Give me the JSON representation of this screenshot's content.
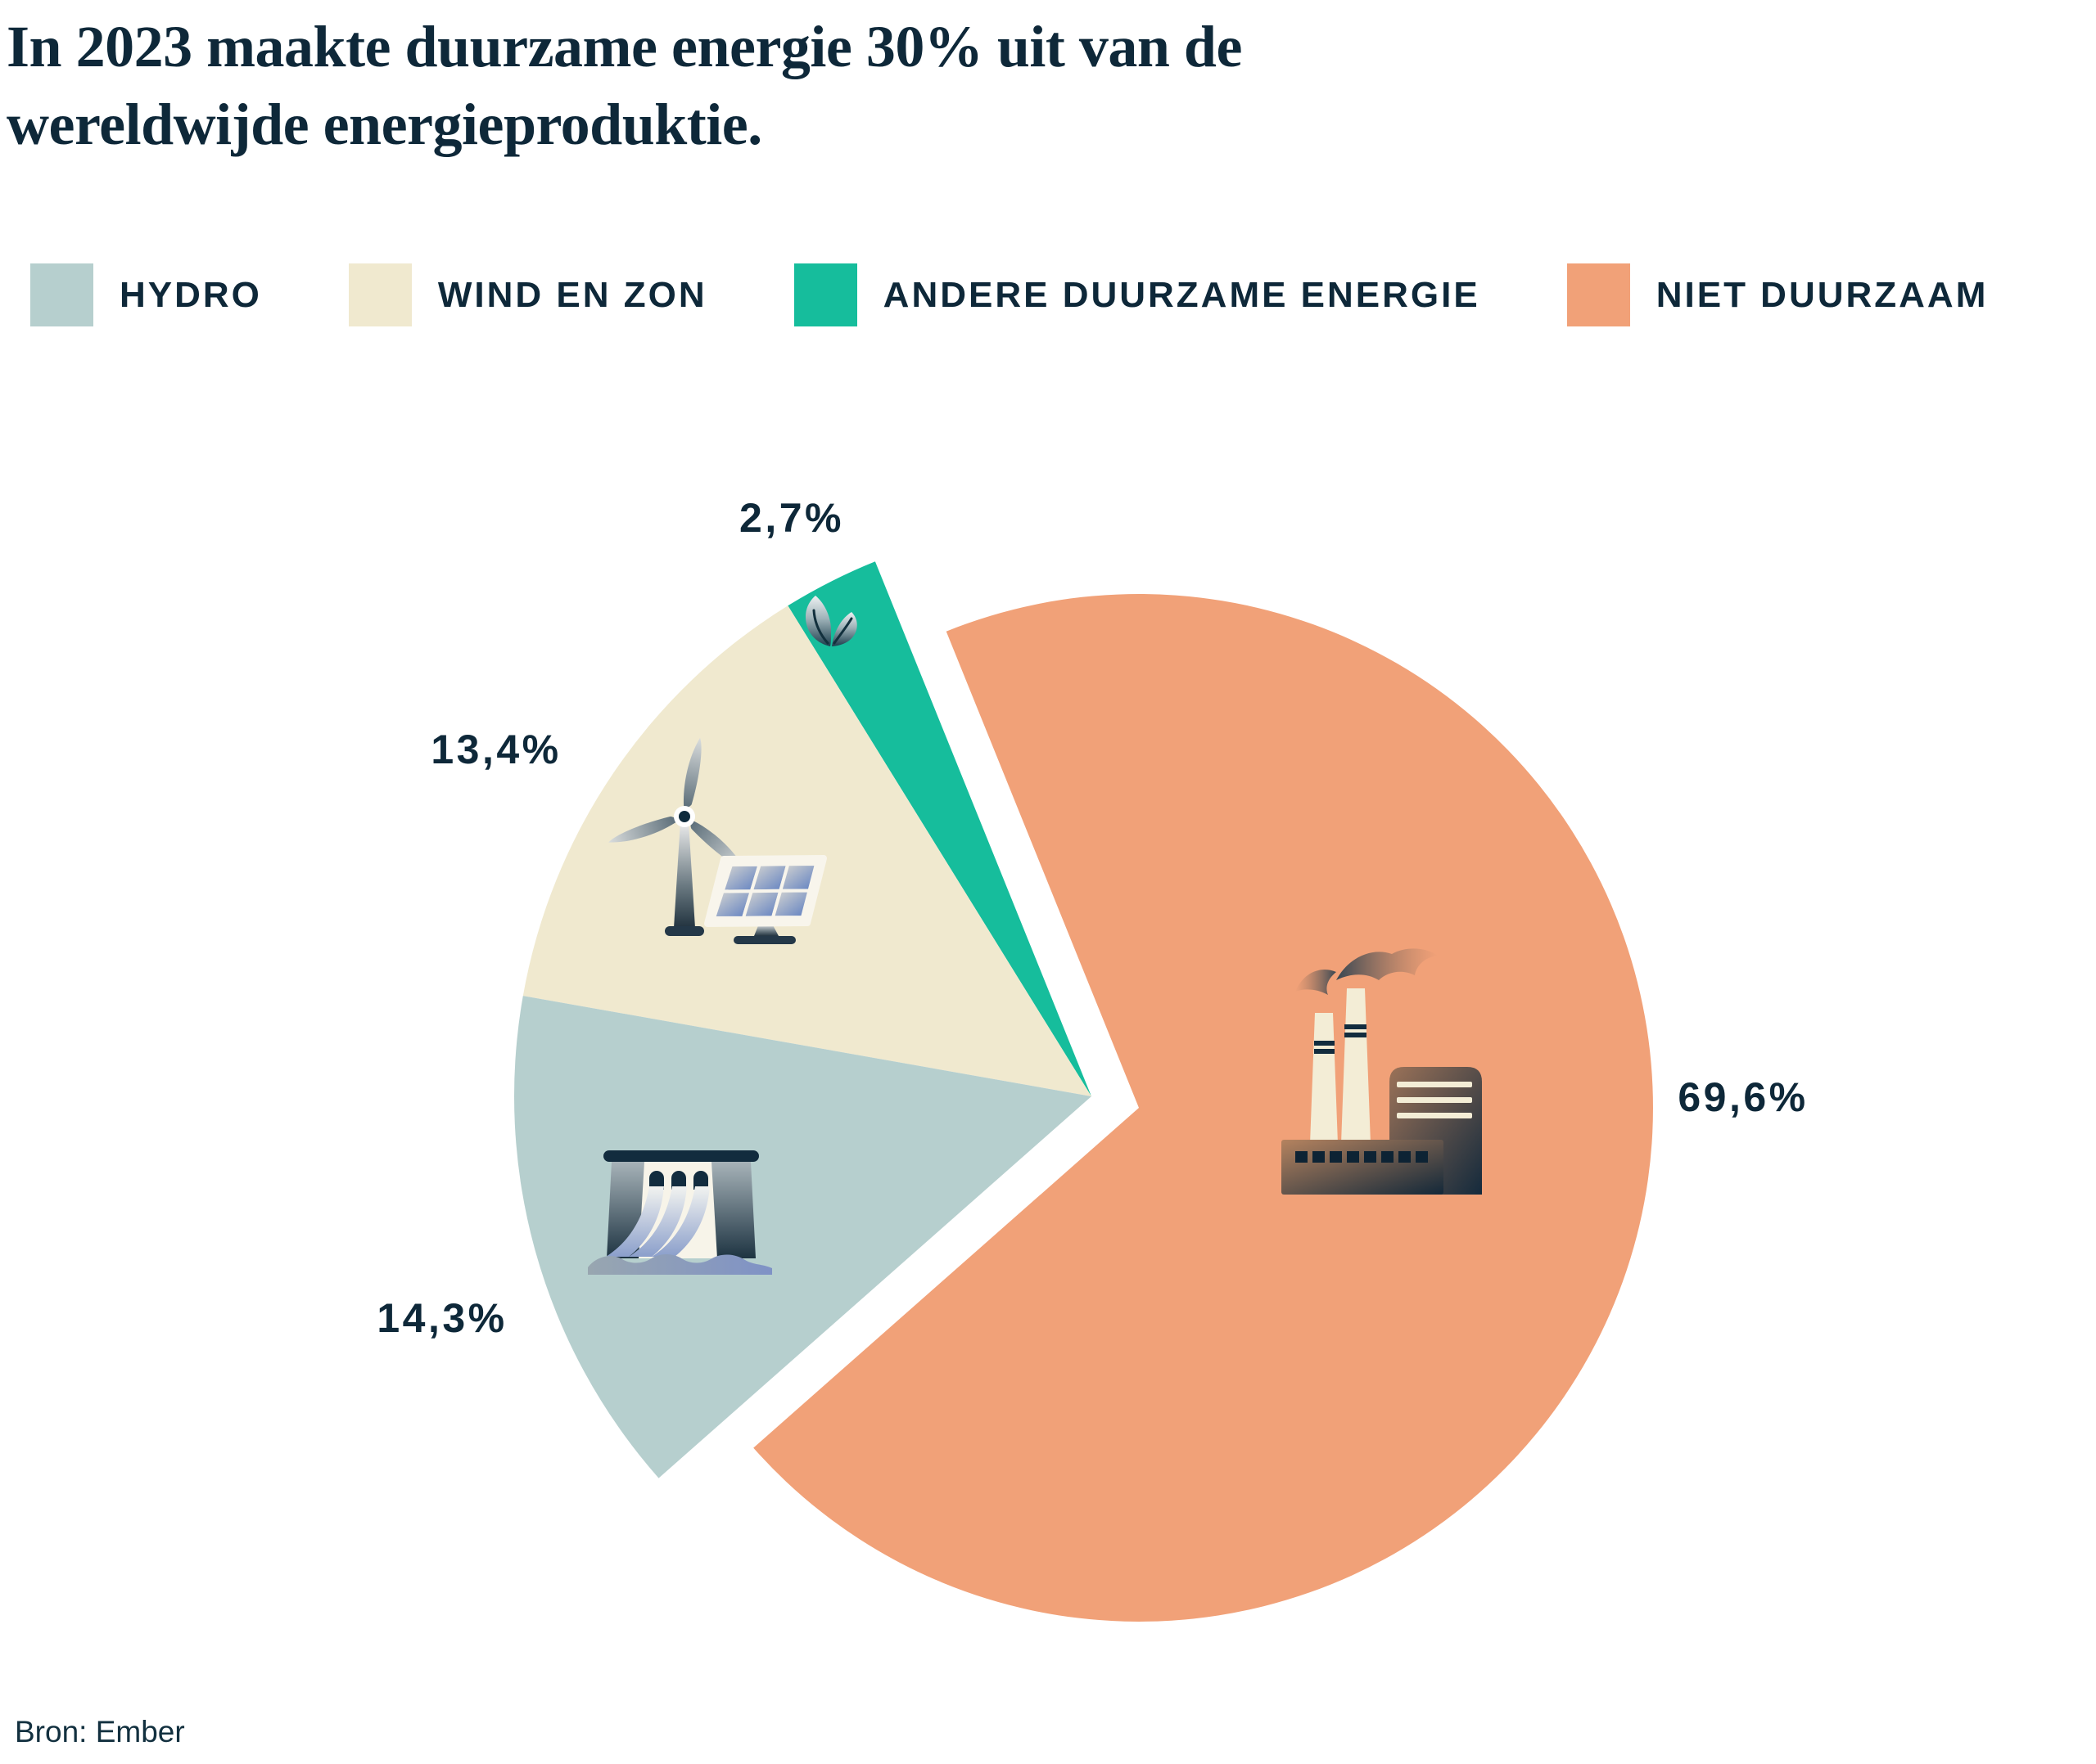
{
  "page": {
    "background": "#ffffff"
  },
  "header": {
    "title_line1": "In 2023 maakte duurzame energie 30% uit van de",
    "title_line2": "wereldwijde energieproduktie."
  },
  "legend": {
    "items": [
      {
        "label": "HYDRO",
        "color": "#B6CFCE"
      },
      {
        "label": "WIND EN ZON",
        "color": "#F0E9CF"
      },
      {
        "label": "ANDERE DUURZAME ENERGIE",
        "color": "#16BD9C"
      },
      {
        "label": "NIET DUURZAAM",
        "color": "#F1A178"
      }
    ]
  },
  "chart_data": {
    "type": "pie",
    "title": "In 2023 maakte duurzame energie 30% uit van de wereldwijde energieproduktie.",
    "unit": "percent",
    "legend_position": "top",
    "start_angle_deg": 112,
    "exploded": true,
    "series": [
      {
        "name": "Andere duurzame energie",
        "value": 2.7,
        "label": "2,7%",
        "color": "#16BD9C",
        "icon": "leaf-icon"
      },
      {
        "name": "Wind en zon",
        "value": 13.4,
        "label": "13,4%",
        "color": "#F0E9CF",
        "icon": "wind-turbine-and-solar-panel-icon"
      },
      {
        "name": "Hydro",
        "value": 14.3,
        "label": "14,3%",
        "color": "#B6CFCE",
        "icon": "hydro-dam-icon"
      },
      {
        "name": "Niet duurzaam",
        "value": 69.6,
        "label": "69,6%",
        "color": "#F1A178",
        "icon": "factory-icon"
      }
    ]
  },
  "source": {
    "text": "Bron: Ember"
  }
}
